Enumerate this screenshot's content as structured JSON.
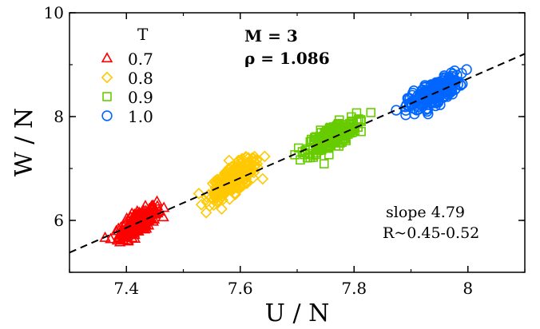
{
  "chart_data": {
    "type": "scatter",
    "xlabel": "U / N",
    "ylabel": "W / N",
    "xlim": [
      7.3,
      8.1
    ],
    "ylim": [
      5.0,
      10.0
    ],
    "xticks": [
      7.4,
      7.6,
      7.8,
      8
    ],
    "xtick_labels": [
      "7.4",
      "7.6",
      "7.8",
      "8"
    ],
    "yticks": [
      6,
      8,
      10
    ],
    "ytick_labels": [
      "6",
      "8",
      "10"
    ],
    "legend_title": "T",
    "legend_position": "top-left",
    "grid": false,
    "annotations": {
      "model": "M = 3",
      "density": "ρ = 1.086",
      "slope": "slope 4.79",
      "correlation": "R~0.45-0.52"
    },
    "fit_line": {
      "style": "dashed",
      "color": "#000000",
      "points": [
        [
          7.3,
          5.38
        ],
        [
          8.1,
          9.21
        ]
      ]
    },
    "series": [
      {
        "name": "0.7",
        "marker": "triangle",
        "color": "#ff0000",
        "cluster": {
          "x_center": 7.42,
          "x_spread": 0.03,
          "y_center": 5.95,
          "y_spread": 0.28,
          "n": 260
        }
      },
      {
        "name": "0.8",
        "marker": "diamond",
        "color": "#ffc800",
        "cluster": {
          "x_center": 7.59,
          "x_spread": 0.04,
          "y_center": 6.8,
          "y_spread": 0.35,
          "n": 260
        }
      },
      {
        "name": "0.9",
        "marker": "square",
        "color": "#66cc00",
        "cluster": {
          "x_center": 7.76,
          "x_spread": 0.04,
          "y_center": 7.6,
          "y_spread": 0.3,
          "n": 260
        }
      },
      {
        "name": "1.0",
        "marker": "circle",
        "color": "#0066ff",
        "cluster": {
          "x_center": 7.94,
          "x_spread": 0.04,
          "y_center": 8.45,
          "y_spread": 0.3,
          "n": 260
        }
      }
    ]
  }
}
